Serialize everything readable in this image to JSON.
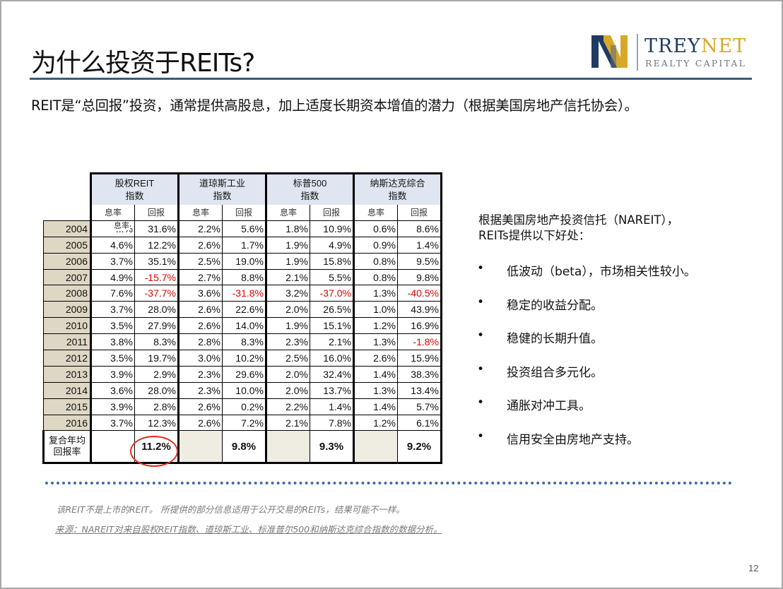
{
  "title": "为什么投资于REITs?",
  "logo": {
    "word_main": "TREY",
    "word_accent": "NET",
    "tagline": "REALTY CAPITAL",
    "colors": {
      "navy": "#1f3b63",
      "gold": "#d7a82a"
    }
  },
  "subtitle": "REIT是“总回报”投资，通常提供高股息，加上适度长期资本增值的潜力（根据美国房地产信托协会）。",
  "table": {
    "indices": [
      {
        "line1": "股权REIT",
        "line2": "指数"
      },
      {
        "line1": "道琼斯工业",
        "line2": "指数"
      },
      {
        "line1": "标普500",
        "line2": "指数"
      },
      {
        "line1": "纳斯达克综合",
        "line2": "指数"
      }
    ],
    "sub_headers": [
      "息率",
      "回报",
      "息率",
      "回报",
      "息率",
      "回报",
      "息率",
      "回报"
    ],
    "overlap_label": "息率",
    "rows": [
      {
        "year": "2004",
        "cells": [
          "...%",
          "31.6%",
          "2.2%",
          "5.6%",
          "1.8%",
          "10.9%",
          "0.6%",
          "8.6%"
        ]
      },
      {
        "year": "2005",
        "cells": [
          "4.6%",
          "12.2%",
          "2.6%",
          "1.7%",
          "1.9%",
          "4.9%",
          "0.9%",
          "1.4%"
        ]
      },
      {
        "year": "2006",
        "cells": [
          "3.7%",
          "35.1%",
          "2.5%",
          "19.0%",
          "1.9%",
          "15.8%",
          "0.8%",
          "9.5%"
        ]
      },
      {
        "year": "2007",
        "cells": [
          "4.9%",
          "-15.7%",
          "2.7%",
          "8.8%",
          "2.1%",
          "5.5%",
          "0.8%",
          "9.8%"
        ]
      },
      {
        "year": "2008",
        "cells": [
          "7.6%",
          "-37.7%",
          "3.6%",
          "-31.8%",
          "3.2%",
          "-37.0%",
          "1.3%",
          "-40.5%"
        ]
      },
      {
        "year": "2009",
        "cells": [
          "3.7%",
          "28.0%",
          "2.6%",
          "22.6%",
          "2.0%",
          "26.5%",
          "1.0%",
          "43.9%"
        ]
      },
      {
        "year": "2010",
        "cells": [
          "3.5%",
          "27.9%",
          "2.6%",
          "14.0%",
          "1.9%",
          "15.1%",
          "1.2%",
          "16.9%"
        ]
      },
      {
        "year": "2011",
        "cells": [
          "3.8%",
          "8.3%",
          "2.8%",
          "8.3%",
          "2.3%",
          "2.1%",
          "1.3%",
          "-1.8%"
        ]
      },
      {
        "year": "2012",
        "cells": [
          "3.5%",
          "19.7%",
          "3.0%",
          "10.2%",
          "2.5%",
          "16.0%",
          "2.6%",
          "15.9%"
        ]
      },
      {
        "year": "2013",
        "cells": [
          "3.9%",
          "2.9%",
          "2.3%",
          "29.6%",
          "2.0%",
          "32.4%",
          "1.4%",
          "38.3%"
        ]
      },
      {
        "year": "2014",
        "cells": [
          "3.6%",
          "28.0%",
          "2.3%",
          "10.0%",
          "2.0%",
          "13.7%",
          "1.3%",
          "13.4%"
        ]
      },
      {
        "year": "2015",
        "cells": [
          "3.9%",
          "2.8%",
          "2.6%",
          "0.2%",
          "2.2%",
          "1.4%",
          "1.4%",
          "5.7%"
        ]
      },
      {
        "year": "2016",
        "cells": [
          "3.7%",
          "12.3%",
          "2.6%",
          "7.2%",
          "2.1%",
          "7.8%",
          "1.2%",
          "6.1%"
        ]
      }
    ],
    "cagr": {
      "label_line1": "复合年均",
      "label_line2": "回报率",
      "values": [
        "11.2%",
        "9.8%",
        "9.3%",
        "9.2%"
      ]
    }
  },
  "side": {
    "intro_line1": "根据美国房地产投资信托（NAREIT），",
    "intro_line2": "REITs提供以下好处：",
    "bullet_symbol": "•",
    "bullets": [
      "低波动（beta），市场相关性较小。",
      " 稳定的收益分配。",
      "稳健的长期升值。",
      "投资组合多元化。",
      "通胀对冲工具。",
      "信用安全由房地产支持。"
    ]
  },
  "footnotes": {
    "note1": "该REIT不是上市的REIT。 所提供的部分信息适用于公开交易的REITs，结果可能不一样。",
    "note2": "来源：NAREIT对来自股权REIT指数、道琼斯工业、标准普尔500和纳斯达克综合指数的数据分析。"
  },
  "page_number": "12"
}
